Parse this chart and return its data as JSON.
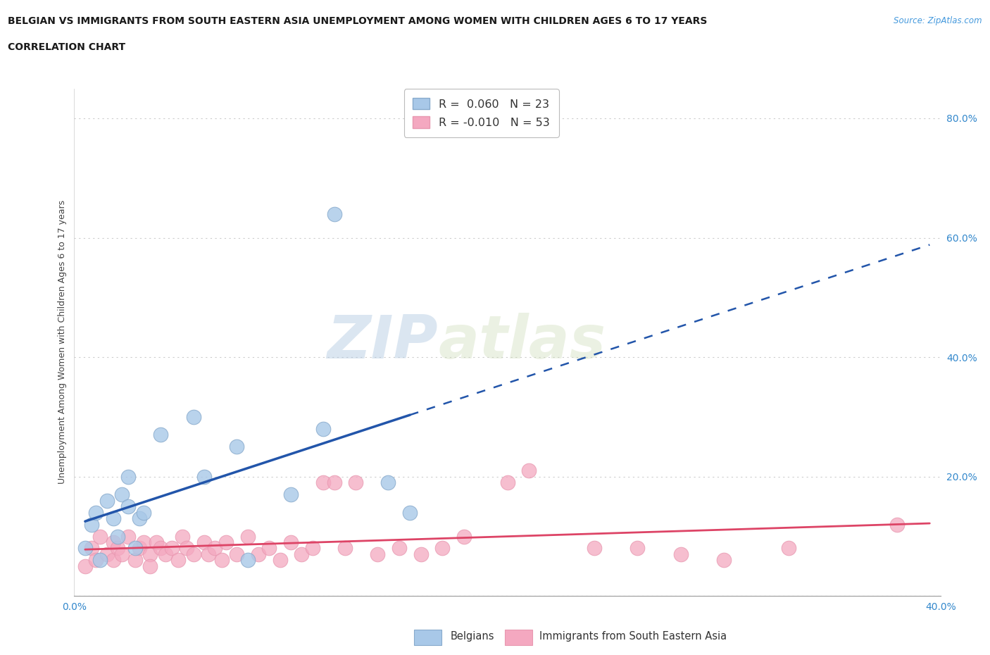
{
  "title_line1": "BELGIAN VS IMMIGRANTS FROM SOUTH EASTERN ASIA UNEMPLOYMENT AMONG WOMEN WITH CHILDREN AGES 6 TO 17 YEARS",
  "title_line2": "CORRELATION CHART",
  "source": "Source: ZipAtlas.com",
  "ylabel": "Unemployment Among Women with Children Ages 6 to 17 years",
  "xlim": [
    0.0,
    0.4
  ],
  "ylim": [
    0.0,
    0.85
  ],
  "xtick_positions": [
    0.0,
    0.1,
    0.2,
    0.3,
    0.4
  ],
  "xtick_labels": [
    "0.0%",
    "",
    "",
    "",
    "40.0%"
  ],
  "ytick_positions": [
    0.0,
    0.2,
    0.4,
    0.6,
    0.8
  ],
  "ytick_labels": [
    "",
    "20.0%",
    "40.0%",
    "60.0%",
    "80.0%"
  ],
  "grid_color": "#cccccc",
  "background_color": "#ffffff",
  "belgian_color": "#a8c8e8",
  "immigrant_color": "#f4a8c0",
  "belgian_line_color": "#2255aa",
  "immigrant_line_color": "#dd4466",
  "legend_R_belgian": "0.060",
  "legend_N_belgian": "23",
  "legend_R_immigrant": "-0.010",
  "legend_N_immigrant": "53",
  "watermark_zip": "ZIP",
  "watermark_atlas": "atlas",
  "belgian_scatter_x": [
    0.005,
    0.008,
    0.01,
    0.012,
    0.015,
    0.018,
    0.02,
    0.022,
    0.025,
    0.025,
    0.028,
    0.03,
    0.032,
    0.04,
    0.055,
    0.06,
    0.075,
    0.08,
    0.1,
    0.115,
    0.12,
    0.145,
    0.155
  ],
  "belgian_scatter_y": [
    0.08,
    0.12,
    0.14,
    0.06,
    0.16,
    0.13,
    0.1,
    0.17,
    0.2,
    0.15,
    0.08,
    0.13,
    0.14,
    0.27,
    0.3,
    0.2,
    0.25,
    0.06,
    0.17,
    0.28,
    0.64,
    0.19,
    0.14
  ],
  "immigrant_scatter_x": [
    0.005,
    0.008,
    0.01,
    0.012,
    0.015,
    0.018,
    0.018,
    0.02,
    0.022,
    0.025,
    0.028,
    0.03,
    0.032,
    0.035,
    0.035,
    0.038,
    0.04,
    0.042,
    0.045,
    0.048,
    0.05,
    0.052,
    0.055,
    0.06,
    0.062,
    0.065,
    0.068,
    0.07,
    0.075,
    0.08,
    0.085,
    0.09,
    0.095,
    0.1,
    0.105,
    0.11,
    0.115,
    0.12,
    0.125,
    0.13,
    0.14,
    0.15,
    0.16,
    0.17,
    0.18,
    0.2,
    0.21,
    0.24,
    0.26,
    0.28,
    0.3,
    0.33,
    0.38
  ],
  "immigrant_scatter_y": [
    0.05,
    0.08,
    0.06,
    0.1,
    0.07,
    0.09,
    0.06,
    0.08,
    0.07,
    0.1,
    0.06,
    0.08,
    0.09,
    0.07,
    0.05,
    0.09,
    0.08,
    0.07,
    0.08,
    0.06,
    0.1,
    0.08,
    0.07,
    0.09,
    0.07,
    0.08,
    0.06,
    0.09,
    0.07,
    0.1,
    0.07,
    0.08,
    0.06,
    0.09,
    0.07,
    0.08,
    0.19,
    0.19,
    0.08,
    0.19,
    0.07,
    0.08,
    0.07,
    0.08,
    0.1,
    0.19,
    0.21,
    0.08,
    0.08,
    0.07,
    0.06,
    0.08,
    0.12
  ]
}
